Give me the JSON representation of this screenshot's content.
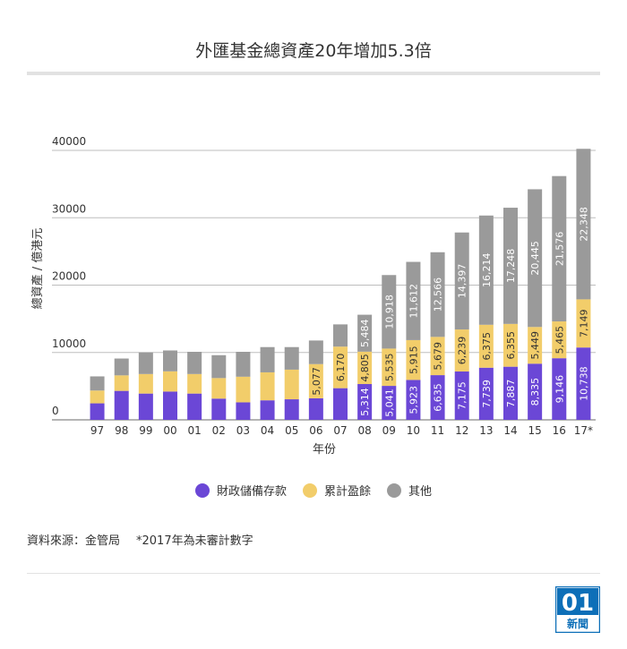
{
  "title": "外匯基金總資產20年增加5.3倍",
  "source": "資料來源：金管局",
  "footnote": "*2017年為未審計數字",
  "logo": {
    "number": "01",
    "text": "新聞"
  },
  "colors": {
    "reserve": "#6b47d6",
    "surplus": "#f2cd6a",
    "other": "#9a9a9a"
  },
  "chart_data": {
    "type": "bar",
    "stacked": true,
    "categories": [
      "97",
      "98",
      "99",
      "00",
      "01",
      "02",
      "03",
      "04",
      "05",
      "06",
      "07",
      "08",
      "09",
      "10",
      "11",
      "12",
      "13",
      "14",
      "15",
      "16",
      "17*"
    ],
    "series": [
      {
        "name": "財政儲備存款",
        "color_key": "reserve",
        "values": [
          2450,
          4300,
          3900,
          4200,
          3900,
          3150,
          2600,
          2900,
          3050,
          3200,
          4700,
          5314,
          5041,
          5923,
          6635,
          7175,
          7739,
          7887,
          8335,
          9146,
          10738
        ],
        "labels": [
          "",
          "",
          "",
          "",
          "",
          "",
          "",
          "",
          "",
          "",
          "",
          "5,314",
          "5,041",
          "5,923",
          "6,635",
          "7,175",
          "7,739",
          "7,887",
          "8,335",
          "9,146",
          "10,738"
        ]
      },
      {
        "name": "累計盈餘",
        "color_key": "surplus",
        "values": [
          1900,
          2300,
          2900,
          3000,
          2900,
          3050,
          3800,
          4150,
          4400,
          5077,
          6170,
          4805,
          5535,
          5915,
          5679,
          6239,
          6375,
          6355,
          5449,
          5465,
          7149
        ],
        "labels": [
          "",
          "",
          "",
          "",
          "",
          "",
          "",
          "",
          "",
          "5,077",
          "6,170",
          "4,805",
          "5,535",
          "5,915",
          "5,679",
          "6,239",
          "6,375",
          "6,355",
          "5,449",
          "5,465",
          "7,149"
        ]
      },
      {
        "name": "其他",
        "color_key": "other",
        "values": [
          2100,
          2500,
          3200,
          3100,
          3300,
          3400,
          3700,
          3750,
          3350,
          3500,
          3300,
          5484,
          10918,
          11612,
          12566,
          14397,
          16214,
          17248,
          20445,
          21576,
          22348
        ],
        "labels": [
          "",
          "",
          "",
          "",
          "",
          "",
          "",
          "",
          "",
          "",
          "",
          "5,484",
          "10,918",
          "11,612",
          "12,566",
          "14,397",
          "16,214",
          "17,248",
          "20,445",
          "21,576",
          "22,348"
        ]
      }
    ],
    "ylim": [
      0,
      40000
    ],
    "yticks": [
      0,
      10000,
      20000,
      30000,
      40000
    ],
    "ytick_labels": [
      "0",
      "10000",
      "20000",
      "30000",
      "40000"
    ],
    "xlabel": "年份",
    "ylabel": "總資產 / 億港元",
    "grid": true,
    "legend_position": "bottom-center"
  }
}
